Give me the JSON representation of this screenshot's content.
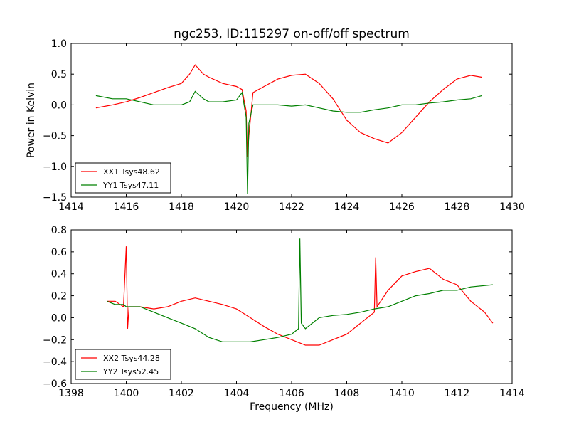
{
  "figure": {
    "title": "ngc253, ID:115297 on-off/off spectrum",
    "xlabel": "Frequency (MHz)",
    "ylabel": "Power in Kelvin"
  },
  "chart_data": [
    {
      "type": "line",
      "xlim": [
        1414,
        1430
      ],
      "ylim": [
        -1.5,
        1.0
      ],
      "xticks": [
        "1414",
        "1416",
        "1418",
        "1420",
        "1422",
        "1424",
        "1426",
        "1428",
        "1430"
      ],
      "yticks": [
        "1.0",
        "0.5",
        "0.0",
        "−0.5",
        "−1.0",
        "−1.5"
      ],
      "grid": false,
      "legend_position": "lower-left",
      "series": [
        {
          "name": "XX1 Tsys48.62",
          "color": "#ff0000",
          "x": [
            1414.9,
            1415.5,
            1416.0,
            1416.5,
            1417.0,
            1417.5,
            1418.0,
            1418.3,
            1418.5,
            1418.8,
            1419.0,
            1419.5,
            1420.0,
            1420.2,
            1420.35,
            1420.4,
            1420.45,
            1420.6,
            1421.0,
            1421.5,
            1422.0,
            1422.5,
            1423.0,
            1423.5,
            1424.0,
            1424.5,
            1425.0,
            1425.5,
            1426.0,
            1426.5,
            1427.0,
            1427.5,
            1428.0,
            1428.5,
            1428.9
          ],
          "y": [
            -0.05,
            0.0,
            0.05,
            0.12,
            0.2,
            0.28,
            0.35,
            0.5,
            0.65,
            0.5,
            0.45,
            0.35,
            0.3,
            0.25,
            -0.1,
            -0.85,
            -0.5,
            0.2,
            0.3,
            0.42,
            0.48,
            0.5,
            0.35,
            0.1,
            -0.25,
            -0.45,
            -0.55,
            -0.62,
            -0.45,
            -0.2,
            0.05,
            0.25,
            0.42,
            0.48,
            0.45
          ]
        },
        {
          "name": "YY1 Tsys47.11",
          "color": "#008000",
          "x": [
            1414.9,
            1415.5,
            1416.0,
            1416.5,
            1417.0,
            1417.5,
            1418.0,
            1418.3,
            1418.5,
            1418.8,
            1419.0,
            1419.5,
            1420.0,
            1420.2,
            1420.35,
            1420.4,
            1420.45,
            1420.6,
            1421.0,
            1421.5,
            1422.0,
            1422.5,
            1423.0,
            1423.5,
            1424.0,
            1424.5,
            1425.0,
            1425.5,
            1426.0,
            1426.5,
            1427.0,
            1427.5,
            1428.0,
            1428.5,
            1428.9
          ],
          "y": [
            0.15,
            0.1,
            0.1,
            0.05,
            0.0,
            0.0,
            0.0,
            0.05,
            0.22,
            0.1,
            0.05,
            0.05,
            0.08,
            0.2,
            -0.2,
            -1.45,
            -0.3,
            0.0,
            0.0,
            0.0,
            -0.02,
            0.0,
            -0.05,
            -0.1,
            -0.12,
            -0.12,
            -0.08,
            -0.05,
            0.0,
            0.0,
            0.03,
            0.05,
            0.08,
            0.1,
            0.15
          ]
        }
      ]
    },
    {
      "type": "line",
      "xlim": [
        1398,
        1414
      ],
      "ylim": [
        -0.6,
        0.8
      ],
      "xticks": [
        "1398",
        "1400",
        "1402",
        "1404",
        "1406",
        "1408",
        "1410",
        "1412",
        "1414"
      ],
      "yticks": [
        "0.8",
        "0.6",
        "0.4",
        "0.2",
        "0.0",
        "−0.2",
        "−0.4",
        "−0.6"
      ],
      "grid": false,
      "legend_position": "lower-left",
      "series": [
        {
          "name": "XX2 Tsys44.28",
          "color": "#ff0000",
          "x": [
            1399.3,
            1399.6,
            1399.9,
            1400.0,
            1400.05,
            1400.1,
            1400.5,
            1401.0,
            1401.5,
            1402.0,
            1402.5,
            1403.0,
            1403.5,
            1404.0,
            1404.5,
            1405.0,
            1405.5,
            1406.0,
            1406.5,
            1407.0,
            1407.5,
            1408.0,
            1408.5,
            1409.0,
            1409.05,
            1409.1,
            1409.5,
            1410.0,
            1410.5,
            1411.0,
            1411.5,
            1412.0,
            1412.5,
            1413.0,
            1413.3
          ],
          "y": [
            0.15,
            0.15,
            0.1,
            0.65,
            -0.1,
            0.1,
            0.1,
            0.08,
            0.1,
            0.15,
            0.18,
            0.15,
            0.12,
            0.08,
            0.0,
            -0.08,
            -0.15,
            -0.2,
            -0.25,
            -0.25,
            -0.2,
            -0.15,
            -0.05,
            0.05,
            0.55,
            0.1,
            0.25,
            0.38,
            0.42,
            0.45,
            0.35,
            0.3,
            0.15,
            0.05,
            -0.05
          ]
        },
        {
          "name": "YY2 Tsys52.45",
          "color": "#008000",
          "x": [
            1399.3,
            1399.6,
            1399.9,
            1400.0,
            1400.05,
            1400.1,
            1400.5,
            1401.0,
            1401.5,
            1402.0,
            1402.5,
            1403.0,
            1403.5,
            1404.0,
            1404.5,
            1405.0,
            1405.5,
            1406.0,
            1406.25,
            1406.3,
            1406.35,
            1406.5,
            1407.0,
            1407.5,
            1408.0,
            1408.5,
            1409.0,
            1409.5,
            1410.0,
            1410.5,
            1411.0,
            1411.5,
            1412.0,
            1412.5,
            1413.3
          ],
          "y": [
            0.15,
            0.12,
            0.12,
            0.1,
            0.1,
            0.1,
            0.1,
            0.05,
            0.0,
            -0.05,
            -0.1,
            -0.18,
            -0.22,
            -0.22,
            -0.22,
            -0.2,
            -0.18,
            -0.15,
            -0.1,
            0.72,
            -0.05,
            -0.1,
            0.0,
            0.02,
            0.03,
            0.05,
            0.08,
            0.1,
            0.15,
            0.2,
            0.22,
            0.25,
            0.25,
            0.28,
            0.3
          ]
        }
      ]
    }
  ]
}
